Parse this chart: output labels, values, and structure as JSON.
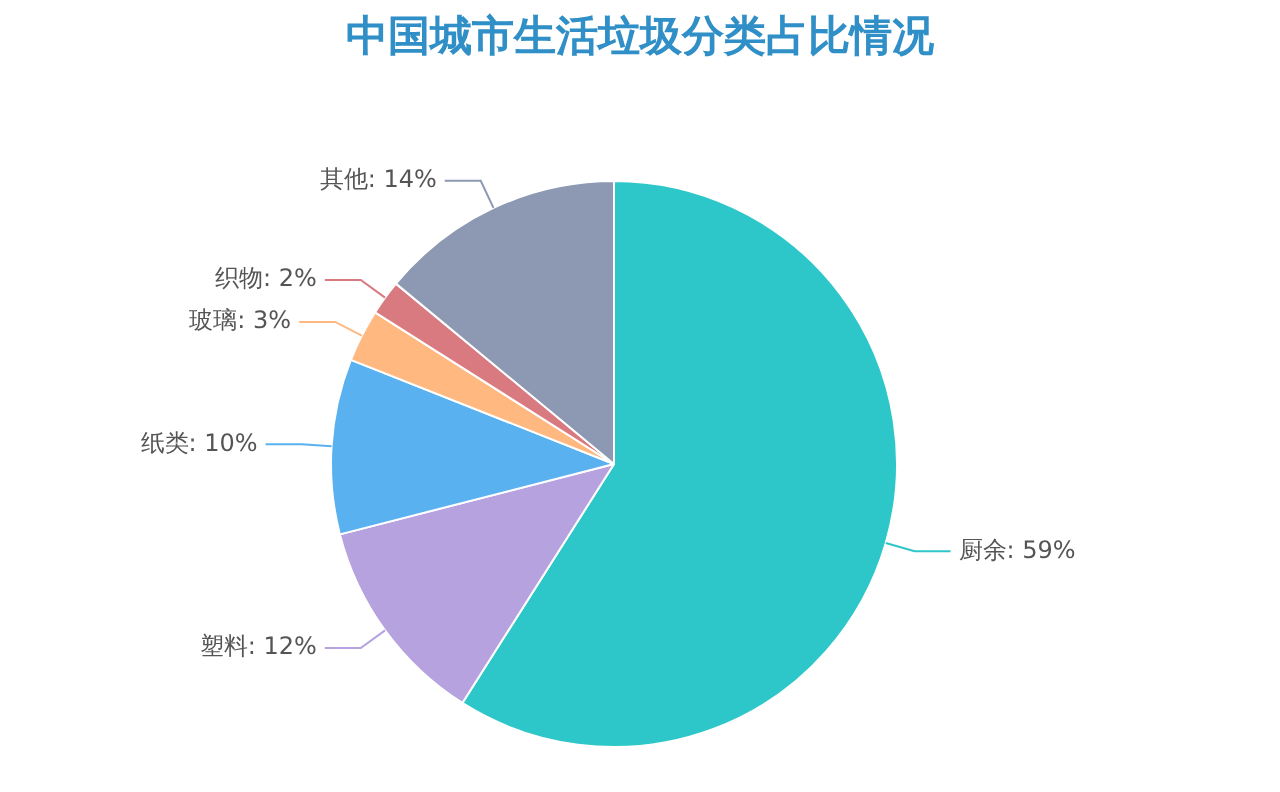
{
  "chart_data": {
    "type": "pie",
    "title": "中国城市生活垃圾分类占比情况",
    "categories": [
      "厨余",
      "塑料",
      "纸类",
      "玻璃",
      "织物",
      "其他"
    ],
    "values": [
      59,
      12,
      10,
      3,
      2,
      14
    ],
    "colors": [
      "#2ec7c9",
      "#b6a2de",
      "#5ab1ef",
      "#ffb980",
      "#d87a80",
      "#8d98b3"
    ],
    "value_labels": [
      "59%",
      "12%",
      "10%",
      "3%",
      "2%",
      "14%"
    ],
    "legend": false
  }
}
